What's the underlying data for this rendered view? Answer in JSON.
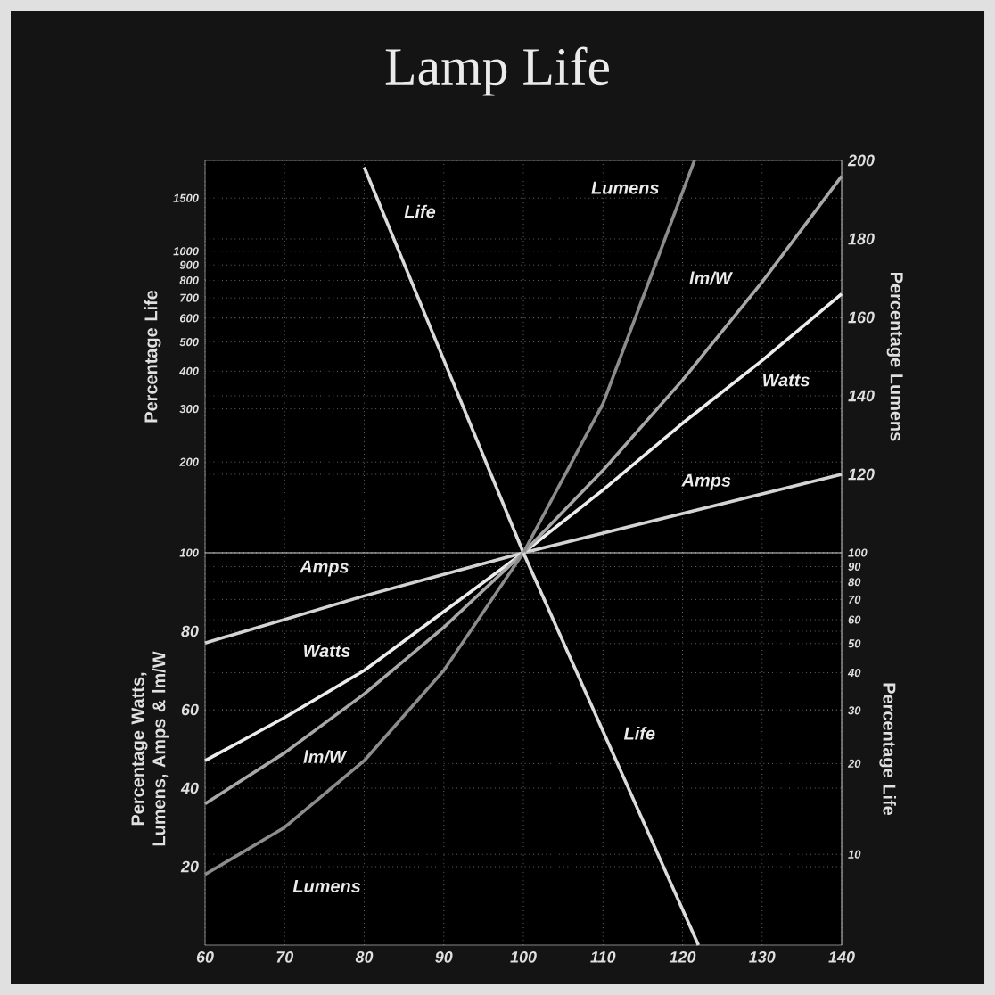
{
  "chart_data": [
    {
      "type": "line",
      "title": "Lamp Life",
      "ylabel": "Percentage Life",
      "y2label": "Percentage Lumens",
      "tick_labels": "y",
      "xlim": [
        60,
        140
      ],
      "xticks": [
        60,
        70,
        80,
        90,
        100,
        110,
        120,
        130,
        140
      ],
      "log": "y",
      "ylim": [
        100,
        2000
      ],
      "yticks": [
        100,
        200,
        300,
        400,
        500,
        600,
        700,
        800,
        900,
        1000,
        1500
      ],
      "y2lim": [
        100,
        200
      ],
      "y2ticks": [
        {
          "value": 100,
          "label": null
        },
        120,
        140,
        160,
        180,
        200
      ],
      "grid": true,
      "marker": "none",
      "series": [
        {
          "name": "Amps",
          "color": "#d4d4d4",
          "axis": "y2",
          "x": [
            100,
            120,
            140
          ],
          "values": [
            100,
            110,
            120
          ]
        },
        {
          "name": "Watts",
          "color": "#ececec",
          "axis": "y2",
          "x": [
            100,
            110,
            120,
            130,
            140
          ],
          "values": [
            100,
            116,
            133,
            149,
            166
          ]
        },
        {
          "name": "lm/W",
          "color": "#a8a8a8",
          "axis": "y2",
          "x": [
            100,
            110,
            120,
            130,
            140
          ],
          "values": [
            100,
            121,
            144,
            169,
            196
          ]
        },
        {
          "name": "Lumens",
          "color": "#8c8c8c",
          "axis": "y2",
          "x": [
            100,
            110,
            121.5
          ],
          "values": [
            100,
            138,
            200
          ]
        },
        {
          "name": "Life",
          "color": "#dcdcdc",
          "x": [
            80,
            100
          ],
          "values": [
            1900,
            100
          ]
        }
      ]
    },
    {
      "type": "line",
      "ylabel": "Percentage Watts, Lumens, Amps & lm/W",
      "y2label": "Percentage Life",
      "xlim": [
        60,
        140
      ],
      "xticks": [
        60,
        70,
        80,
        90,
        100,
        110,
        120,
        130,
        140
      ],
      "ylim": [
        0,
        100
      ],
      "yticks": [
        20,
        40,
        60,
        80
      ],
      "log": "y2",
      "y2lim": [
        5,
        100
      ],
      "y2ticks": [
        10,
        20,
        30,
        40,
        50,
        60,
        70,
        80,
        90,
        100
      ],
      "grid": true,
      "marker": "none",
      "series": [
        {
          "name": "Amps",
          "color": "#d4d4d4",
          "x": [
            60,
            80,
            100
          ],
          "values": [
            77,
            89,
            100
          ]
        },
        {
          "name": "Watts",
          "color": "#ececec",
          "x": [
            60,
            70,
            80,
            90,
            100
          ],
          "values": [
            47,
            58,
            70,
            85,
            100
          ]
        },
        {
          "name": "lm/W",
          "color": "#a8a8a8",
          "x": [
            60,
            70,
            80,
            90,
            100
          ],
          "values": [
            36,
            49,
            64,
            81,
            100
          ]
        },
        {
          "name": "Lumens",
          "color": "#8c8c8c",
          "x": [
            60,
            70,
            80,
            90,
            100
          ],
          "values": [
            18,
            30,
            47,
            70,
            100
          ]
        },
        {
          "name": "Life",
          "color": "#dcdcdc",
          "axis": "y2",
          "x": [
            100,
            122
          ],
          "values": [
            100,
            5
          ]
        }
      ]
    }
  ]
}
